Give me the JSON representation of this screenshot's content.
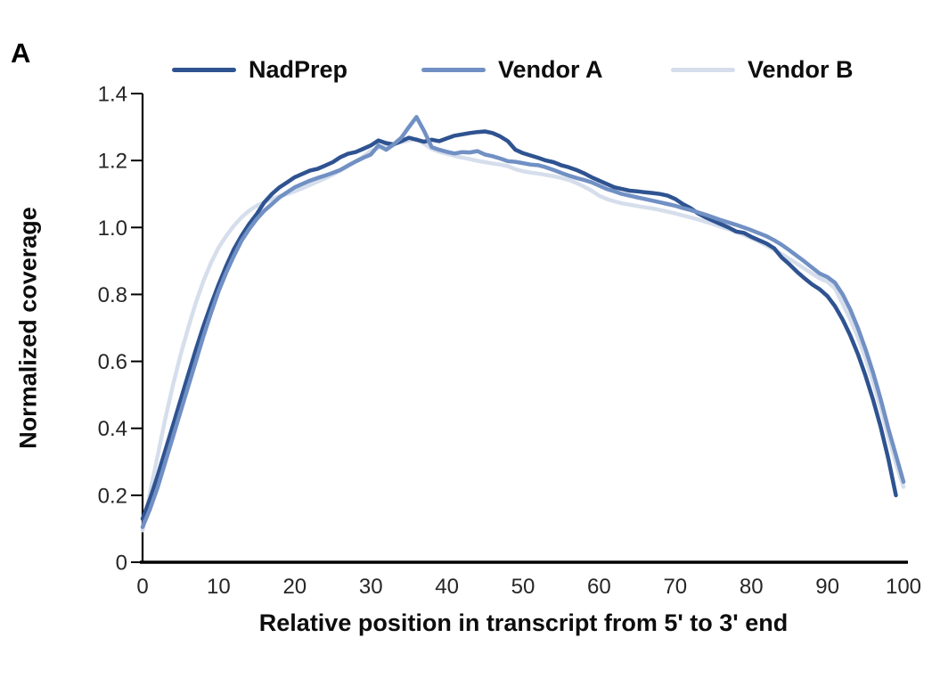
{
  "panel_label": "A",
  "chart_data": {
    "type": "line",
    "title": "",
    "xlabel": "Relative position in transcript from 5' to 3' end",
    "ylabel": "Normalized coverage",
    "xlim": [
      0,
      100
    ],
    "ylim": [
      0,
      1.4
    ],
    "x_ticks": [
      "0",
      "10",
      "20",
      "30",
      "40",
      "50",
      "60",
      "70",
      "80",
      "90",
      "100"
    ],
    "y_ticks": [
      "0",
      "0.2",
      "0.4",
      "0.6",
      "0.8",
      "1.0",
      "1.2",
      "1.4"
    ],
    "grid": false,
    "legend_position": "top",
    "axis_color": "#000000",
    "tick_label_color": "#262626",
    "draw_order": [
      2,
      0,
      1
    ],
    "series": [
      {
        "name": "NadPrep",
        "color": "#2F5391",
        "x_start": 0,
        "x_step": 1,
        "values": [
          0.13,
          0.19,
          0.26,
          0.335,
          0.41,
          0.485,
          0.56,
          0.635,
          0.705,
          0.77,
          0.83,
          0.885,
          0.935,
          0.975,
          1.01,
          1.04,
          1.075,
          1.1,
          1.12,
          1.135,
          1.15,
          1.16,
          1.17,
          1.175,
          1.185,
          1.195,
          1.21,
          1.22,
          1.225,
          1.235,
          1.245,
          1.26,
          1.252,
          1.248,
          1.258,
          1.268,
          1.262,
          1.256,
          1.262,
          1.258,
          1.266,
          1.274,
          1.278,
          1.282,
          1.285,
          1.287,
          1.282,
          1.272,
          1.258,
          1.232,
          1.222,
          1.215,
          1.208,
          1.2,
          1.195,
          1.186,
          1.18,
          1.172,
          1.162,
          1.15,
          1.14,
          1.13,
          1.12,
          1.115,
          1.11,
          1.108,
          1.105,
          1.103,
          1.1,
          1.095,
          1.085,
          1.07,
          1.058,
          1.042,
          1.03,
          1.02,
          1.01,
          1.0,
          0.988,
          0.984,
          0.972,
          0.962,
          0.952,
          0.938,
          0.91,
          0.89,
          0.868,
          0.848,
          0.83,
          0.815,
          0.795,
          0.765,
          0.725,
          0.678,
          0.622,
          0.558,
          0.486,
          0.404,
          0.31,
          0.2
        ]
      },
      {
        "name": "Vendor A",
        "color": "#7190C4",
        "x_start": 0,
        "x_step": 1,
        "values": [
          0.105,
          0.16,
          0.225,
          0.3,
          0.375,
          0.45,
          0.525,
          0.6,
          0.675,
          0.745,
          0.81,
          0.865,
          0.915,
          0.96,
          0.995,
          1.025,
          1.05,
          1.07,
          1.09,
          1.105,
          1.12,
          1.13,
          1.14,
          1.148,
          1.155,
          1.163,
          1.172,
          1.185,
          1.197,
          1.208,
          1.218,
          1.245,
          1.232,
          1.248,
          1.268,
          1.3,
          1.33,
          1.288,
          1.24,
          1.232,
          1.226,
          1.221,
          1.225,
          1.224,
          1.228,
          1.218,
          1.213,
          1.206,
          1.198,
          1.196,
          1.192,
          1.188,
          1.186,
          1.18,
          1.172,
          1.163,
          1.155,
          1.148,
          1.142,
          1.135,
          1.125,
          1.115,
          1.108,
          1.1,
          1.095,
          1.09,
          1.085,
          1.08,
          1.075,
          1.07,
          1.065,
          1.058,
          1.052,
          1.045,
          1.038,
          1.03,
          1.022,
          1.015,
          1.008,
          1.0,
          0.992,
          0.983,
          0.974,
          0.962,
          0.948,
          0.932,
          0.915,
          0.898,
          0.88,
          0.862,
          0.852,
          0.835,
          0.8,
          0.755,
          0.7,
          0.637,
          0.567,
          0.487,
          0.4,
          0.32,
          0.24
        ]
      },
      {
        "name": "Vendor B",
        "color": "#D6DEEC",
        "x_start": 0,
        "x_step": 1,
        "values": [
          0.095,
          0.21,
          0.32,
          0.43,
          0.53,
          0.62,
          0.7,
          0.775,
          0.84,
          0.895,
          0.94,
          0.975,
          1.005,
          1.03,
          1.05,
          1.065,
          1.075,
          1.085,
          1.093,
          1.1,
          1.108,
          1.117,
          1.127,
          1.137,
          1.147,
          1.158,
          1.17,
          1.183,
          1.197,
          1.212,
          1.228,
          1.238,
          1.244,
          1.25,
          1.255,
          1.26,
          1.265,
          1.25,
          1.235,
          1.226,
          1.22,
          1.214,
          1.209,
          1.204,
          1.199,
          1.195,
          1.191,
          1.188,
          1.183,
          1.174,
          1.168,
          1.164,
          1.161,
          1.157,
          1.153,
          1.148,
          1.142,
          1.133,
          1.122,
          1.11,
          1.095,
          1.085,
          1.078,
          1.072,
          1.068,
          1.064,
          1.06,
          1.057,
          1.052,
          1.047,
          1.042,
          1.036,
          1.03,
          1.024,
          1.017,
          1.01,
          1.002,
          0.995,
          0.987,
          0.978,
          0.968,
          0.958,
          0.946,
          0.933,
          0.92,
          0.906,
          0.892,
          0.877,
          0.862,
          0.848,
          0.838,
          0.818,
          0.772,
          0.726,
          0.672,
          0.61,
          0.54,
          0.462,
          0.378,
          0.295,
          0.225
        ]
      }
    ]
  }
}
